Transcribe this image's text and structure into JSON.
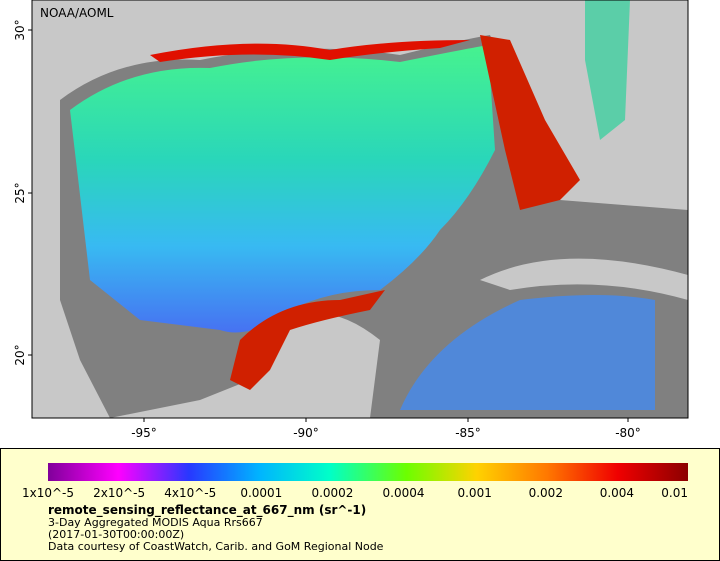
{
  "map": {
    "credit": "NOAA/AOML",
    "lat_labels": [
      "30°",
      "25°",
      "20°"
    ],
    "lon_labels": [
      "-95°",
      "-90°",
      "-85°",
      "-80°"
    ]
  },
  "legend": {
    "scale_labels": [
      "1x10^-5",
      "2x10^-5",
      "4x10^-5",
      "0.0001",
      "0.0002",
      "0.0004",
      "0.001",
      "0.002",
      "0.004",
      "0.01"
    ],
    "variable": "remote_sensing_reflectance_at_667_nm (sr^-1)",
    "lines": [
      "3-Day Aggregated MODIS Aqua Rrs667",
      "(2017-01-30T00:00:00Z)",
      "Data courtesy of CoastWatch, Carib. and GoM Regional Node"
    ]
  }
}
